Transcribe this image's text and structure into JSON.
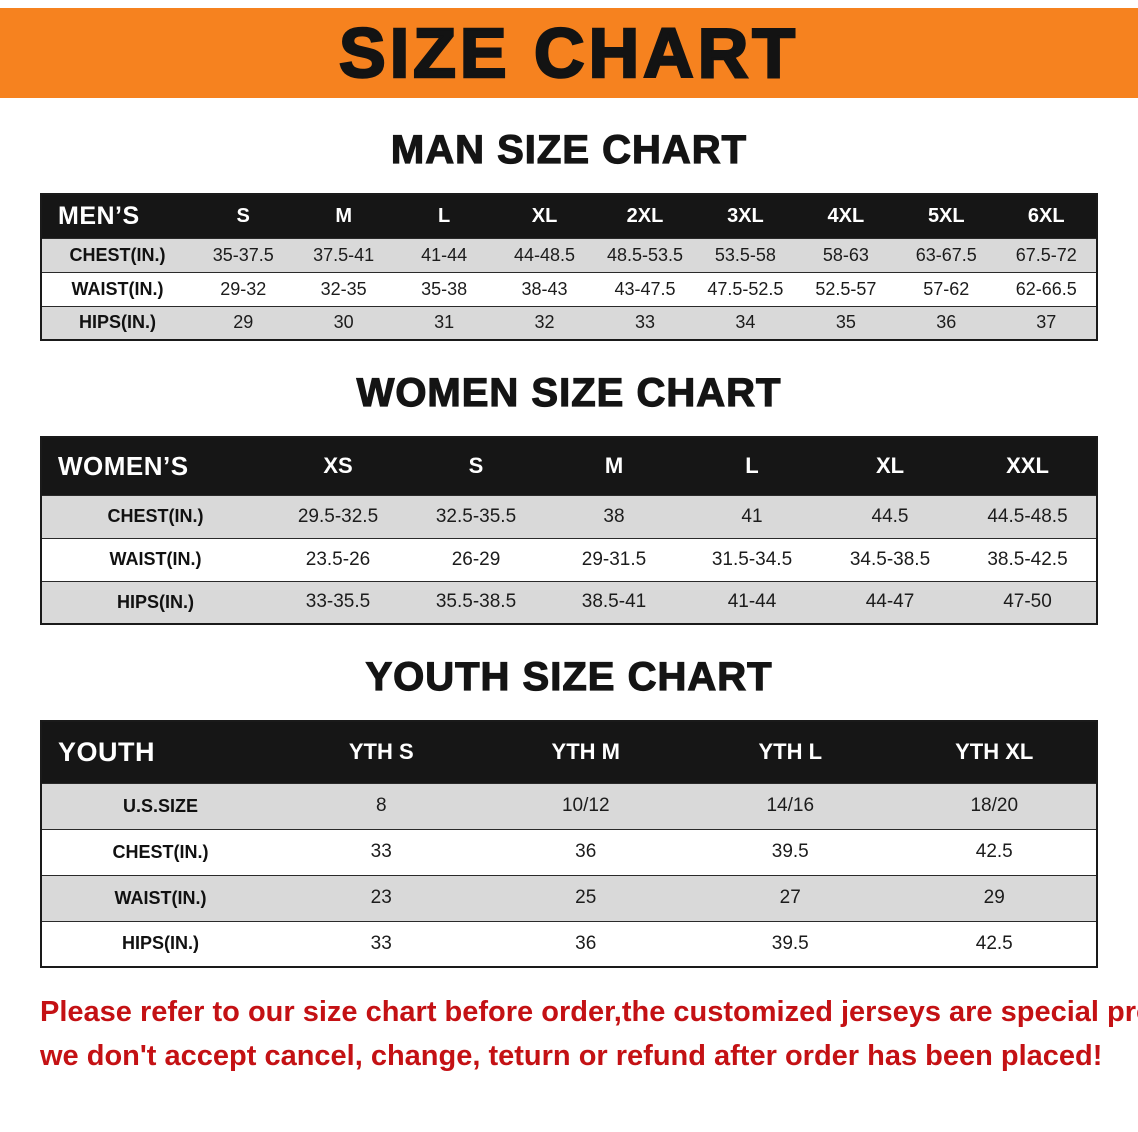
{
  "banner": {
    "title": "SIZE CHART"
  },
  "colors": {
    "banner_bg": "#f6821f",
    "header_bg": "#161616",
    "row_stripe": "#d9d9d9",
    "notice_text": "#c41114",
    "text": "#141414"
  },
  "chart_data": [
    {
      "type": "table",
      "title": "MAN SIZE CHART",
      "header": [
        "MEN’S",
        "S",
        "M",
        "L",
        "XL",
        "2XL",
        "3XL",
        "4XL",
        "5XL",
        "6XL"
      ],
      "rows": [
        [
          "CHEST(IN.)",
          "35-37.5",
          "37.5-41",
          "41-44",
          "44-48.5",
          "48.5-53.5",
          "53.5-58",
          "58-63",
          "63-67.5",
          "67.5-72"
        ],
        [
          "WAIST(IN.)",
          "29-32",
          "32-35",
          "35-38",
          "38-43",
          "43-47.5",
          "47.5-52.5",
          "52.5-57",
          "57-62",
          "62-66.5"
        ],
        [
          "HIPS(IN.)",
          "29",
          "30",
          "31",
          "32",
          "33",
          "34",
          "35",
          "36",
          "37"
        ]
      ]
    },
    {
      "type": "table",
      "title": "WOMEN SIZE CHART",
      "header": [
        "WOMEN’S",
        "XS",
        "S",
        "M",
        "L",
        "XL",
        "XXL"
      ],
      "rows": [
        [
          "CHEST(IN.)",
          "29.5-32.5",
          "32.5-35.5",
          "38",
          "41",
          "44.5",
          "44.5-48.5"
        ],
        [
          "WAIST(IN.)",
          "23.5-26",
          "26-29",
          "29-31.5",
          "31.5-34.5",
          "34.5-38.5",
          "38.5-42.5"
        ],
        [
          "HIPS(IN.)",
          "33-35.5",
          "35.5-38.5",
          "38.5-41",
          "41-44",
          "44-47",
          "47-50"
        ]
      ]
    },
    {
      "type": "table",
      "title": "YOUTH SIZE CHART",
      "header": [
        "YOUTH",
        "YTH S",
        "YTH M",
        "YTH L",
        "YTH XL"
      ],
      "rows": [
        [
          "U.S.SIZE",
          "8",
          "10/12",
          "14/16",
          "18/20"
        ],
        [
          "CHEST(IN.)",
          "33",
          "36",
          "39.5",
          "42.5"
        ],
        [
          "WAIST(IN.)",
          "23",
          "25",
          "27",
          "29"
        ],
        [
          "HIPS(IN.)",
          "33",
          "36",
          "39.5",
          "42.5"
        ]
      ]
    }
  ],
  "footer": {
    "lines": [
      "Please refer to our size chart before order,the customized jerseys are special products,",
      "we don't accept cancel, change, teturn or refund after order has been placed!"
    ]
  }
}
